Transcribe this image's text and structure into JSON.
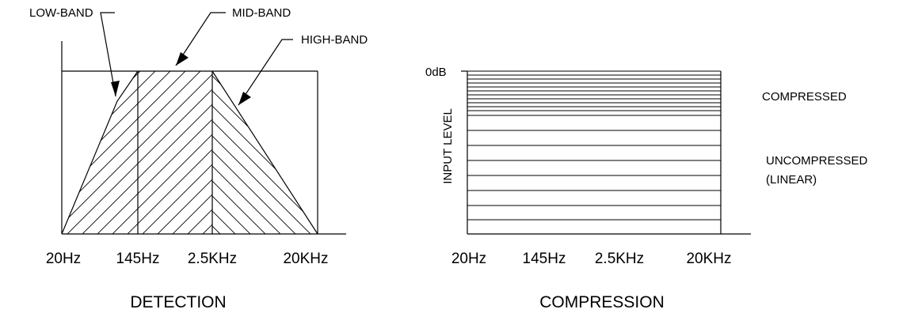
{
  "detection": {
    "caption": "DETECTION",
    "bands": {
      "low": "LOW-BAND",
      "mid": "MID-BAND",
      "high": "HIGH-BAND"
    },
    "x_ticks": [
      "20Hz",
      "145Hz",
      "2.5KHz",
      "20KHz"
    ]
  },
  "compression": {
    "caption": "COMPRESSION",
    "y_axis_label": "INPUT LEVEL",
    "top_level": "0dB",
    "regions": {
      "compressed": "COMPRESSED",
      "uncompressed": "UNCOMPRESSED",
      "uncompressed_note": "(LINEAR)"
    },
    "x_ticks": [
      "20Hz",
      "145Hz",
      "2.5KHz",
      "20KHz"
    ]
  },
  "colors": {
    "ink": "#000000",
    "background": "#ffffff"
  }
}
